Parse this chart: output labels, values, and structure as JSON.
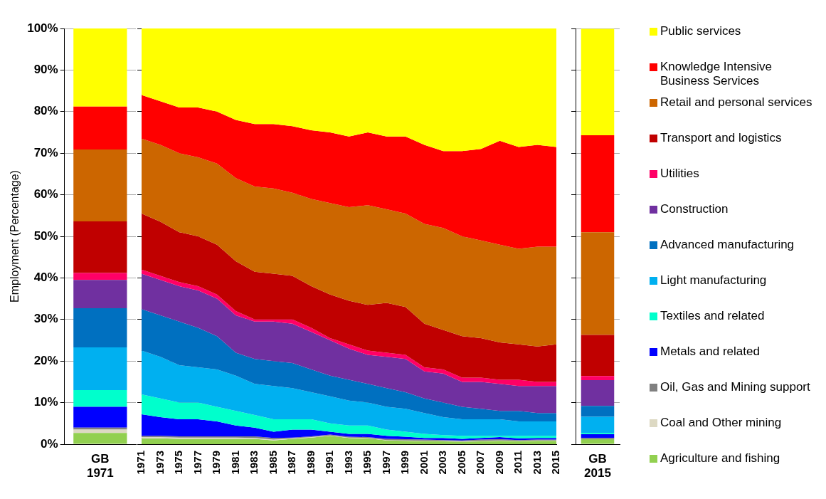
{
  "chart_data": [
    {
      "type": "bar",
      "stacked": true,
      "categories": [
        "GB 1971"
      ],
      "ylabel": "Employment (Percentage)",
      "ylim": [
        0,
        100
      ],
      "yticks": [
        {
          "value": 0,
          "label": "0%"
        },
        {
          "value": 10,
          "label": "10%"
        },
        {
          "value": 20,
          "label": "20%"
        },
        {
          "value": 30,
          "label": "30%"
        },
        {
          "value": 40,
          "label": "40%"
        },
        {
          "value": 50,
          "label": "50%"
        },
        {
          "value": 60,
          "label": "60%"
        },
        {
          "value": 70,
          "label": "70%"
        },
        {
          "value": 80,
          "label": "80%"
        },
        {
          "value": 90,
          "label": "90%"
        },
        {
          "value": 100,
          "label": "100%"
        }
      ],
      "grid": "y",
      "series": [
        {
          "color": "#92d050",
          "values": [
            2.7
          ]
        },
        {
          "color": "#ddd9c3",
          "values": [
            0.8
          ]
        },
        {
          "color": "#808080",
          "values": [
            0.5
          ]
        },
        {
          "color": "#0000ff",
          "values": [
            5
          ]
        },
        {
          "color": "#00ffcc",
          "values": [
            4
          ]
        },
        {
          "color": "#00b0f0",
          "values": [
            10.3
          ]
        },
        {
          "color": "#0070c0",
          "values": [
            9.4
          ]
        },
        {
          "color": "#7030a0",
          "values": [
            6.8
          ]
        },
        {
          "color": "#ff0066",
          "values": [
            1.7
          ]
        },
        {
          "color": "#c00000",
          "values": [
            12.4
          ]
        },
        {
          "color": "#cc6600",
          "values": [
            17.3
          ]
        },
        {
          "color": "#ff0000",
          "values": [
            10.3
          ]
        },
        {
          "color": "#ffff00",
          "values": [
            18.8
          ]
        }
      ]
    },
    {
      "type": "area",
      "stacked": true,
      "x": [
        1971,
        1973,
        1975,
        1977,
        1979,
        1981,
        1983,
        1985,
        1987,
        1989,
        1991,
        1993,
        1995,
        1997,
        1999,
        2001,
        2003,
        2005,
        2007,
        2009,
        2011,
        2013,
        2015
      ],
      "xlim": [
        1971,
        2015
      ],
      "xticks": [
        1971,
        1973,
        1975,
        1977,
        1979,
        1981,
        1983,
        1985,
        1987,
        1989,
        1991,
        1993,
        1995,
        1997,
        1999,
        2001,
        2003,
        2005,
        2007,
        2009,
        2011,
        2013,
        2015
      ],
      "ylim": [
        0,
        100
      ],
      "yticks": [
        0,
        10,
        20,
        30,
        40,
        50,
        60,
        70,
        80,
        90,
        100
      ],
      "tick_labels": "x",
      "grid": "y",
      "legend": "right",
      "series": [
        {
          "name": "Agriculture and fishing",
          "color": "#92d050",
          "values": [
            1.4,
            1.4,
            1.3,
            1.3,
            1.3,
            1.3,
            1.3,
            0.9,
            1.3,
            1.6,
            2.0,
            1.5,
            1.4,
            0.9,
            0.8,
            0.7,
            0.7,
            0.6,
            0.7,
            0.8,
            0.7,
            0.8,
            0.8
          ]
        },
        {
          "name": "Coal and Other mining",
          "color": "#ddd9c3",
          "values": [
            0.3,
            0.3,
            0.3,
            0.3,
            0.3,
            0.3,
            0.2,
            0.2,
            0.1,
            0.1,
            0.1,
            0.1,
            0.1,
            0.1,
            0.1,
            0.1,
            0.1,
            0.1,
            0.1,
            0.1,
            0.1,
            0.1,
            0.1
          ]
        },
        {
          "name": "Oil, Gas and Mining support",
          "color": "#808080",
          "values": [
            0.3,
            0.3,
            0.3,
            0.3,
            0.3,
            0.3,
            0.4,
            0.4,
            0.2,
            0.2,
            0.2,
            0.2,
            0.2,
            0.3,
            0.3,
            0.3,
            0.2,
            0.2,
            0.3,
            0.3,
            0.2,
            0.2,
            0.2
          ]
        },
        {
          "name": "Metals and related",
          "color": "#0000ff",
          "values": [
            5.2,
            4.5,
            4.1,
            4.1,
            3.6,
            2.6,
            2.1,
            1.5,
            1.9,
            1.6,
            0.7,
            0.7,
            0.8,
            0.7,
            0.6,
            0.4,
            0.5,
            0.4,
            0.4,
            0.5,
            0.4,
            0.4,
            0.4
          ]
        },
        {
          "name": "Textiles and related",
          "color": "#00ffcc",
          "values": [
            4.8,
            4.5,
            4,
            4,
            3.5,
            3.5,
            3,
            3,
            2.5,
            2.5,
            2,
            2,
            2,
            1.5,
            1.2,
            1.0,
            0.7,
            0.7,
            0.5,
            0.3,
            0.6,
            0.5,
            0.5
          ]
        },
        {
          "name": "Light manufacturing",
          "color": "#00b0f0",
          "values": [
            10.5,
            10,
            9,
            8.5,
            9,
            8.5,
            7.5,
            8,
            7.5,
            6.5,
            6.5,
            6,
            5.5,
            5.5,
            5.5,
            5,
            4.3,
            4,
            4,
            4,
            3.5,
            3.5,
            3.5
          ]
        },
        {
          "name": "Advanced manufacturing",
          "color": "#0070c0",
          "values": [
            10,
            10,
            10.5,
            9.5,
            8,
            5.5,
            6,
            6,
            6,
            5.5,
            5,
            5,
            4.5,
            4.5,
            4,
            3.5,
            3.5,
            3,
            2.5,
            2,
            2.5,
            2,
            2
          ]
        },
        {
          "name": "Construction",
          "color": "#7030a0",
          "values": [
            8.5,
            8.5,
            8.5,
            9,
            9,
            9,
            9,
            9.5,
            9.5,
            9,
            8.5,
            7.5,
            7,
            7.5,
            8,
            6.5,
            7,
            6,
            6.5,
            6.5,
            6,
            6.5,
            6.5
          ]
        },
        {
          "name": "Utilities",
          "color": "#ff0066",
          "values": [
            1,
            1,
            1,
            1,
            1,
            1,
            0.5,
            0.5,
            1,
            1,
            0.5,
            1,
            1,
            1,
            1,
            1,
            1,
            1,
            1,
            1,
            1.5,
            1,
            1
          ]
        },
        {
          "name": "Transport and logistics",
          "color": "#c00000",
          "values": [
            13.5,
            13,
            12,
            12,
            12,
            12,
            11.5,
            11,
            10.5,
            10,
            10.5,
            10.5,
            11,
            12,
            11.5,
            10.5,
            9.5,
            10,
            9.5,
            9,
            8.5,
            8.5,
            9
          ]
        },
        {
          "name": "Retail and personal services",
          "color": "#cc6600",
          "values": [
            18,
            18.5,
            19,
            19,
            19.5,
            20,
            20.5,
            20.5,
            20,
            21,
            22,
            22.5,
            24,
            22.5,
            22.5,
            24,
            24.5,
            24,
            23.5,
            23.5,
            23,
            24,
            23.5
          ]
        },
        {
          "name": "Knowledge Intensive Business Services",
          "color": "#ff0000",
          "values": [
            10.5,
            10.5,
            11,
            12,
            12.5,
            14,
            15,
            15.5,
            16,
            16.5,
            17,
            17,
            17.5,
            17.5,
            18.5,
            19,
            18.5,
            20.5,
            22,
            25,
            24.5,
            24.5,
            24
          ]
        },
        {
          "name": "Public services",
          "color": "#ffff00",
          "values": [
            16,
            17.5,
            19,
            19,
            20,
            22,
            23,
            23,
            23.5,
            24.5,
            25,
            26,
            25,
            26,
            26,
            28,
            29.5,
            29.5,
            29,
            27,
            28.5,
            28,
            28.5
          ]
        }
      ]
    },
    {
      "type": "bar",
      "stacked": true,
      "categories": [
        "GB 2015"
      ],
      "ylim": [
        0,
        100
      ],
      "yticks": [
        0,
        10,
        20,
        30,
        40,
        50,
        60,
        70,
        80,
        90,
        100
      ],
      "tick_labels": "x",
      "grid": "y",
      "series": [
        {
          "color": "#92d050",
          "values": [
            1.2
          ]
        },
        {
          "color": "#ddd9c3",
          "values": [
            null
          ]
        },
        {
          "color": "#808080",
          "values": [
            0.3
          ]
        },
        {
          "color": "#0000ff",
          "values": [
            0.9
          ]
        },
        {
          "color": "#00ffcc",
          "values": [
            0.3
          ]
        },
        {
          "color": "#00b0f0",
          "values": [
            3.9
          ]
        },
        {
          "color": "#0070c0",
          "values": [
            2.6
          ]
        },
        {
          "color": "#7030a0",
          "values": [
            6.2
          ]
        },
        {
          "color": "#ff0066",
          "values": [
            1
          ]
        },
        {
          "color": "#c00000",
          "values": [
            9.9
          ]
        },
        {
          "color": "#cc6600",
          "values": [
            24.7
          ]
        },
        {
          "color": "#ff0000",
          "values": [
            23.3
          ]
        },
        {
          "color": "#ffff00",
          "values": [
            25.6
          ]
        }
      ]
    }
  ]
}
